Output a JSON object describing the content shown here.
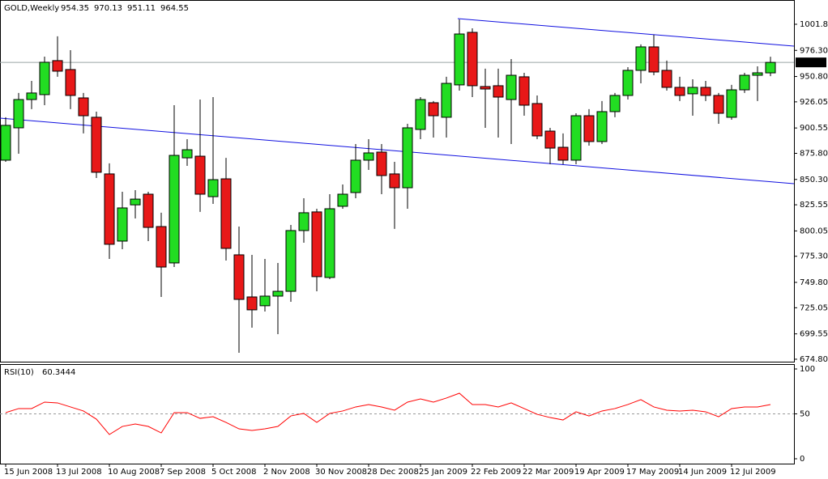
{
  "chart_data": {
    "type": "candlestick",
    "title": "GOLD,Weekly",
    "categories": [
      "15 Jun 2008",
      null,
      null,
      null,
      "13 Jul 2008",
      null,
      null,
      null,
      "10 Aug 2008",
      null,
      null,
      null,
      "7 Sep 2008",
      null,
      null,
      null,
      "5 Oct 2008",
      null,
      null,
      null,
      "2 Nov 2008",
      null,
      null,
      null,
      "30 Nov 2008",
      null,
      null,
      null,
      "28 Dec 2008",
      null,
      null,
      null,
      "25 Jan 2009",
      null,
      null,
      null,
      "22 Feb 2009",
      null,
      null,
      null,
      "22 Mar 2009",
      null,
      null,
      null,
      "19 Apr 2009",
      null,
      null,
      null,
      "17 May 2009",
      null,
      null,
      null,
      "14 Jun 2009",
      null,
      null,
      null,
      "12 Jul 2009",
      null,
      null,
      null
    ],
    "open": [
      869.1,
      900.7,
      928.3,
      933.1,
      966.3,
      957.6,
      929.9,
      911.0,
      855.7,
      790.1,
      825.5,
      835.9,
      804.3,
      768.8,
      871.4,
      873.0,
      833.5,
      850.9,
      776.7,
      735.6,
      727.0,
      736.4,
      741.1,
      800.4,
      818.6,
      754.6,
      824.1,
      837.5,
      869.1,
      877.0,
      855.7,
      842.2,
      899.1,
      925.2,
      911.0,
      942.6,
      993.9,
      941.0,
      941.8,
      928.3,
      950.5,
      924.4,
      897.5,
      881.7,
      869.1,
      912.5,
      887.3,
      916.5,
      932.3,
      956.8,
      979.7,
      956.8,
      940.2,
      933.9,
      940.2,
      932.3,
      911.0,
      937.8,
      952.0,
      954.35
    ],
    "high": [
      911.0,
      934.7,
      946.5,
      970.2,
      990.0,
      976.5,
      934.7,
      916.5,
      866.0,
      838.3,
      839.9,
      838.3,
      817.8,
      922.8,
      889.6,
      928.3,
      930.7,
      871.4,
      804.3,
      776.7,
      772.7,
      768.8,
      805.9,
      832.0,
      821.7,
      835.9,
      845.4,
      884.9,
      889.6,
      884.9,
      867.5,
      904.6,
      930.7,
      926.8,
      950.5,
      1006.5,
      997.8,
      958.4,
      958.4,
      967.8,
      954.4,
      932.3,
      900.7,
      895.2,
      914.9,
      918.9,
      926.8,
      934.7,
      959.9,
      982.1,
      991.5,
      966.3,
      950.5,
      948.1,
      946.5,
      934.7,
      942.6,
      954.4,
      960.7,
      970.13
    ],
    "low": [
      867.5,
      875.4,
      918.9,
      922.8,
      950.5,
      918.9,
      895.2,
      851.7,
      772.7,
      782.2,
      812.2,
      790.1,
      735.6,
      764.8,
      863.6,
      818.6,
      826.4,
      771.1,
      681.1,
      705.6,
      721.4,
      699.3,
      730.9,
      788.5,
      741.1,
      753.0,
      821.7,
      832.0,
      859.6,
      835.9,
      802.0,
      821.7,
      889.6,
      891.2,
      891.2,
      937.0,
      930.7,
      900.7,
      891.2,
      884.9,
      912.5,
      889.6,
      865.1,
      865.1,
      865.1,
      883.3,
      884.9,
      911.0,
      928.3,
      944.1,
      952.0,
      937.0,
      926.8,
      912.5,
      926.8,
      904.6,
      908.6,
      934.7,
      926.8,
      951.11
    ],
    "close": [
      903.1,
      928.3,
      934.7,
      964.7,
      956.0,
      932.3,
      912.5,
      857.3,
      787.0,
      822.5,
      831.1,
      803.5,
      764.8,
      873.8,
      879.3,
      835.9,
      850.1,
      783.0,
      733.2,
      723.0,
      736.4,
      741.1,
      800.4,
      817.8,
      755.4,
      821.7,
      835.9,
      869.1,
      876.2,
      854.1,
      842.2,
      900.7,
      928.3,
      912.5,
      944.1,
      992.3,
      941.8,
      938.6,
      930.7,
      952.0,
      922.8,
      892.8,
      880.9,
      869.1,
      912.5,
      887.3,
      916.5,
      932.3,
      956.8,
      979.7,
      955.2,
      940.2,
      932.3,
      940.2,
      932.3,
      914.9,
      937.8,
      952.0,
      954.4,
      964.55
    ],
    "up_color": "#22dd22",
    "down_color": "#e81818",
    "ylim": [
      672.4,
      1023.9
    ],
    "yticks": [
      {
        "value": 1001.8,
        "label": "1001.80"
      },
      {
        "value": 976.3,
        "label": "976.30"
      },
      {
        "value": 950.8,
        "label": "950.80"
      },
      926.05,
      900.55,
      {
        "value": 875.8,
        "label": "875.80"
      },
      {
        "value": 850.3,
        "label": "850.30"
      },
      825.55,
      800.05,
      {
        "value": 775.3,
        "label": "775.30"
      },
      {
        "value": 749.8,
        "label": "749.80"
      },
      725.05,
      699.55,
      {
        "value": 674.8,
        "label": "674.80"
      }
    ],
    "indicator": {
      "type": "line",
      "name": "RSI(10)",
      "color": "#ff0000",
      "values": [
        51.4,
        55.9,
        55.9,
        63.1,
        62.2,
        57.7,
        53.2,
        44.1,
        27.0,
        36.0,
        38.7,
        36.0,
        28.8,
        51.4,
        51.4,
        45.0,
        46.8,
        40.5,
        33.3,
        31.5,
        33.3,
        36.0,
        47.7,
        50.5,
        40.5,
        50.5,
        53.2,
        57.7,
        60.4,
        57.7,
        54.1,
        63.1,
        66.7,
        63.1,
        67.6,
        73.0,
        60.4,
        60.4,
        57.7,
        62.2,
        55.9,
        49.5,
        45.9,
        43.2,
        52.3,
        47.7,
        53.2,
        55.9,
        60.4,
        65.8,
        57.7,
        54.1,
        53.2,
        54.1,
        52.3,
        46.8,
        55.9,
        57.7,
        57.7,
        60.3444
      ],
      "ylim": [
        0,
        100
      ],
      "yticks": [
        0,
        50,
        100
      ]
    }
  }
}
